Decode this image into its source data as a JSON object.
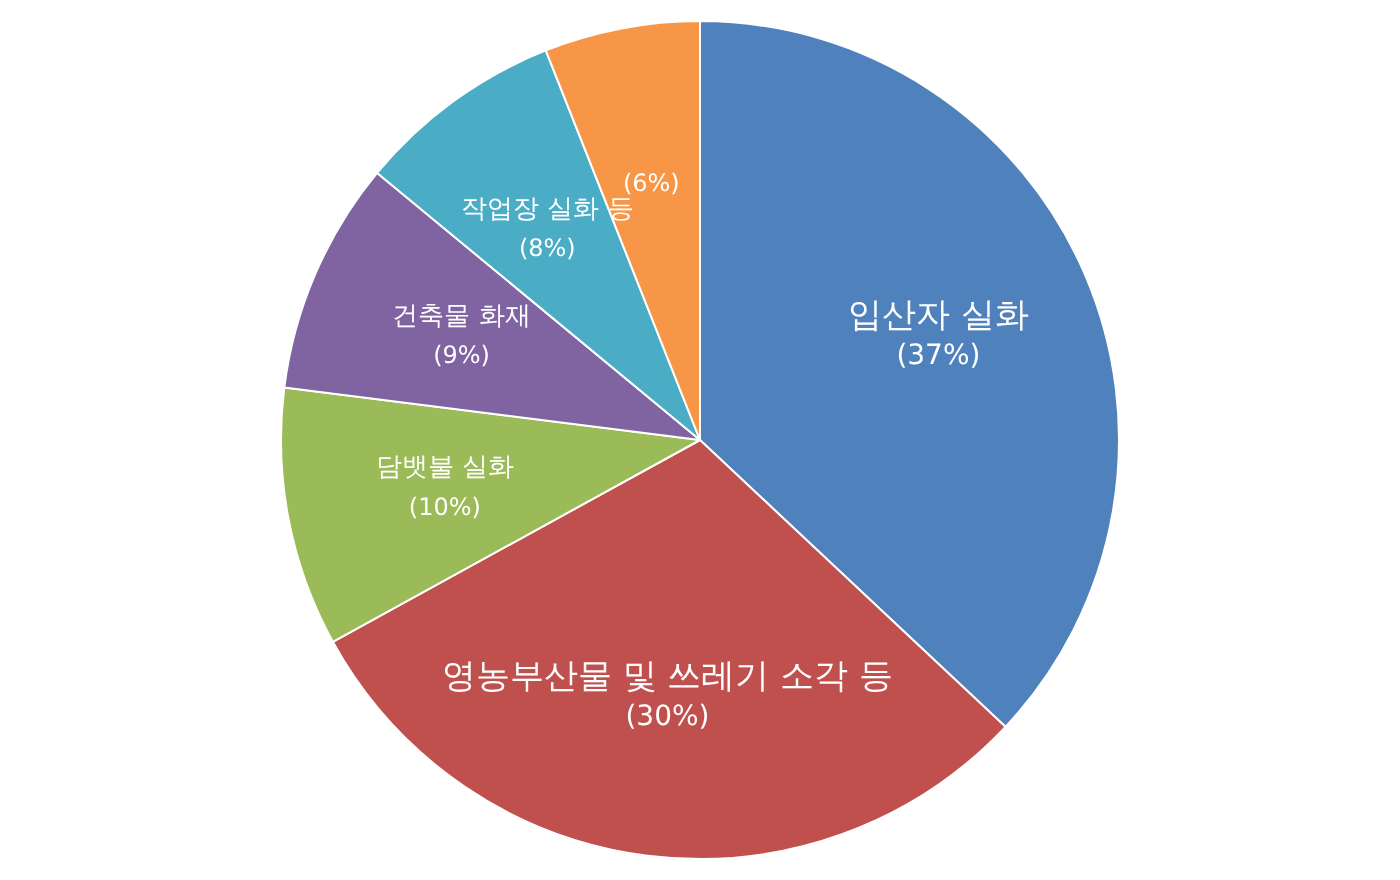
{
  "chart_data": {
    "type": "pie",
    "categories": [
      "입산자 실화",
      "영농부산물 및 쓰레기 소각 등",
      "담뱃불 실화",
      "건축물 화재",
      "작업장 실화 등",
      null
    ],
    "values": [
      37,
      30,
      10,
      9,
      8,
      6
    ],
    "colors": [
      "#4f81bd",
      "#c0504d",
      "#9bbb59",
      "#8064a2",
      "#4bacc6",
      "#f79646"
    ],
    "value_labels": [
      "(37%)",
      "(30%)",
      "(10%)",
      "(9%)",
      "(8%)",
      "(6%)"
    ],
    "legend": false
  }
}
